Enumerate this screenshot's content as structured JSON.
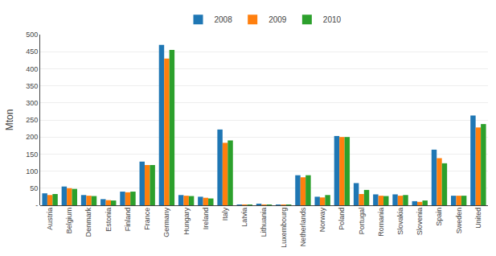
{
  "chart_data": {
    "type": "bar",
    "categories": [
      "Austria",
      "Belgium",
      "Denmark",
      "Estonia",
      "Finland",
      "France",
      "Germany",
      "Hungary",
      "Ireland",
      "Italy",
      "Latvia",
      "Lithuania",
      "Luxembourg",
      "Netherlands",
      "Norway",
      "Poland",
      "Portugal",
      "Romania",
      "Slovakia",
      "Slovenia",
      "Spain",
      "Sweden",
      "United"
    ],
    "series": [
      {
        "name": "2008",
        "values": [
          35,
          55,
          30,
          18,
          40,
          128,
          470,
          30,
          25,
          222,
          1,
          4,
          2,
          88,
          25,
          203,
          65,
          32,
          32,
          12,
          163,
          28,
          263
        ]
      },
      {
        "name": "2009",
        "values": [
          30,
          50,
          28,
          15,
          38,
          118,
          430,
          28,
          22,
          183,
          1,
          2,
          1,
          82,
          23,
          200,
          33,
          28,
          28,
          10,
          138,
          28,
          228
        ]
      },
      {
        "name": "2010",
        "values": [
          33,
          48,
          27,
          14,
          40,
          118,
          455,
          27,
          20,
          190,
          2,
          2,
          1,
          88,
          30,
          200,
          45,
          27,
          30,
          14,
          123,
          28,
          238
        ]
      }
    ],
    "ylabel": "Mton",
    "ylim": [
      0,
      500
    ],
    "yticks": [
      {
        "value": 0,
        "label": "-"
      },
      50,
      100,
      150,
      200,
      250,
      300,
      350,
      400,
      450,
      500
    ],
    "grid": true,
    "legend": "top"
  }
}
